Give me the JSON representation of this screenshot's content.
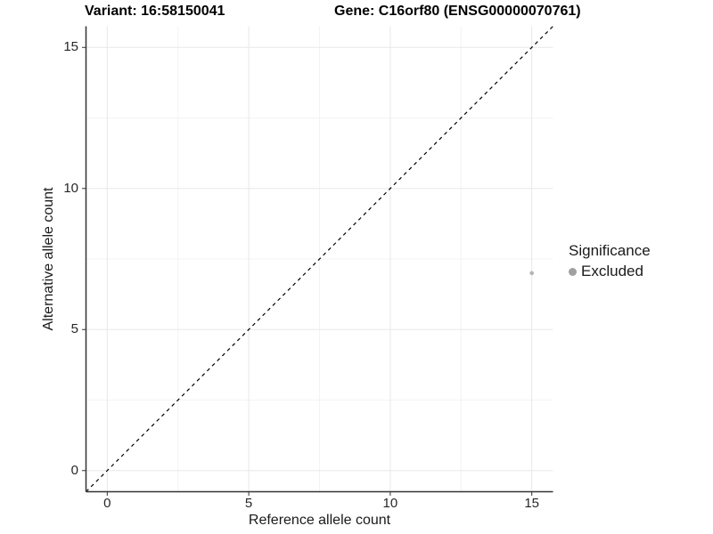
{
  "titles": {
    "left": "Variant: 16:58150041",
    "right": "Gene: C16orf80 (ENSG00000070761)"
  },
  "chart_data": {
    "type": "scatter",
    "title": "Variant: 16:58150041   Gene: C16orf80 (ENSG00000070761)",
    "xlabel": "Reference allele count",
    "ylabel": "Alternative allele count",
    "xlim": [
      -0.75,
      15.75
    ],
    "ylim": [
      -0.75,
      15.75
    ],
    "xticks": [
      0,
      5,
      10,
      15
    ],
    "yticks": [
      0,
      5,
      10,
      15
    ],
    "minor_ticks": [
      2.5,
      7.5,
      12.5
    ],
    "grid": "major-and-minor",
    "identity_line": {
      "style": "dashed",
      "slope": 1,
      "intercept": 0
    },
    "series": [
      {
        "name": "Excluded",
        "color": "#b5b5b5",
        "points": [
          {
            "x": 15,
            "y": 7
          }
        ]
      }
    ],
    "legend": {
      "position": "right",
      "title": "Significance",
      "entries": [
        {
          "label": "Excluded",
          "color": "#a0a0a0"
        }
      ]
    },
    "style": {
      "background": "#ffffff",
      "grid_major_color": "#e8e8e8",
      "grid_minor_color": "#f3f3f3",
      "axis_line_color": "#333333",
      "tick_mark_color": "#333333",
      "dashed_line_color": "#000000"
    }
  }
}
